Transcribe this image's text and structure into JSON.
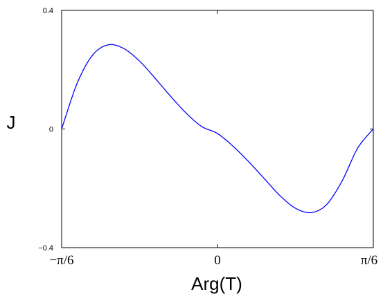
{
  "chart_data": {
    "type": "line",
    "title": "",
    "xlabel": "Arg(T)",
    "ylabel": "J",
    "xlim": [
      -0.5236,
      0.5236
    ],
    "ylim": [
      -0.4,
      0.4
    ],
    "x_ticks": [
      {
        "value": -0.5236,
        "label": "−π/6"
      },
      {
        "value": 0,
        "label": "0"
      },
      {
        "value": 0.5236,
        "label": "π/6"
      }
    ],
    "y_ticks": [
      {
        "value": 0.4,
        "label": "0.4"
      },
      {
        "value": 0,
        "label": "0"
      },
      {
        "value": -0.4,
        "label": "−0.4"
      }
    ],
    "grid": false,
    "legend": "none",
    "series": [
      {
        "color": "#0000ff",
        "x": [
          -0.5236,
          -0.4712,
          -0.4189,
          -0.3665,
          -0.3142,
          -0.2618,
          -0.2094,
          -0.1571,
          -0.1047,
          -0.0524,
          0,
          0.0524,
          0.1047,
          0.1571,
          0.2094,
          0.2618,
          0.3142,
          0.3665,
          0.4189,
          0.4712,
          0.5236
        ],
        "y": [
          0,
          0.155,
          0.25,
          0.284,
          0.271,
          0.229,
          0.171,
          0.11,
          0.053,
          0.008,
          -0.015,
          -0.058,
          -0.11,
          -0.167,
          -0.224,
          -0.267,
          -0.282,
          -0.255,
          -0.175,
          -0.064,
          0
        ]
      }
    ]
  }
}
